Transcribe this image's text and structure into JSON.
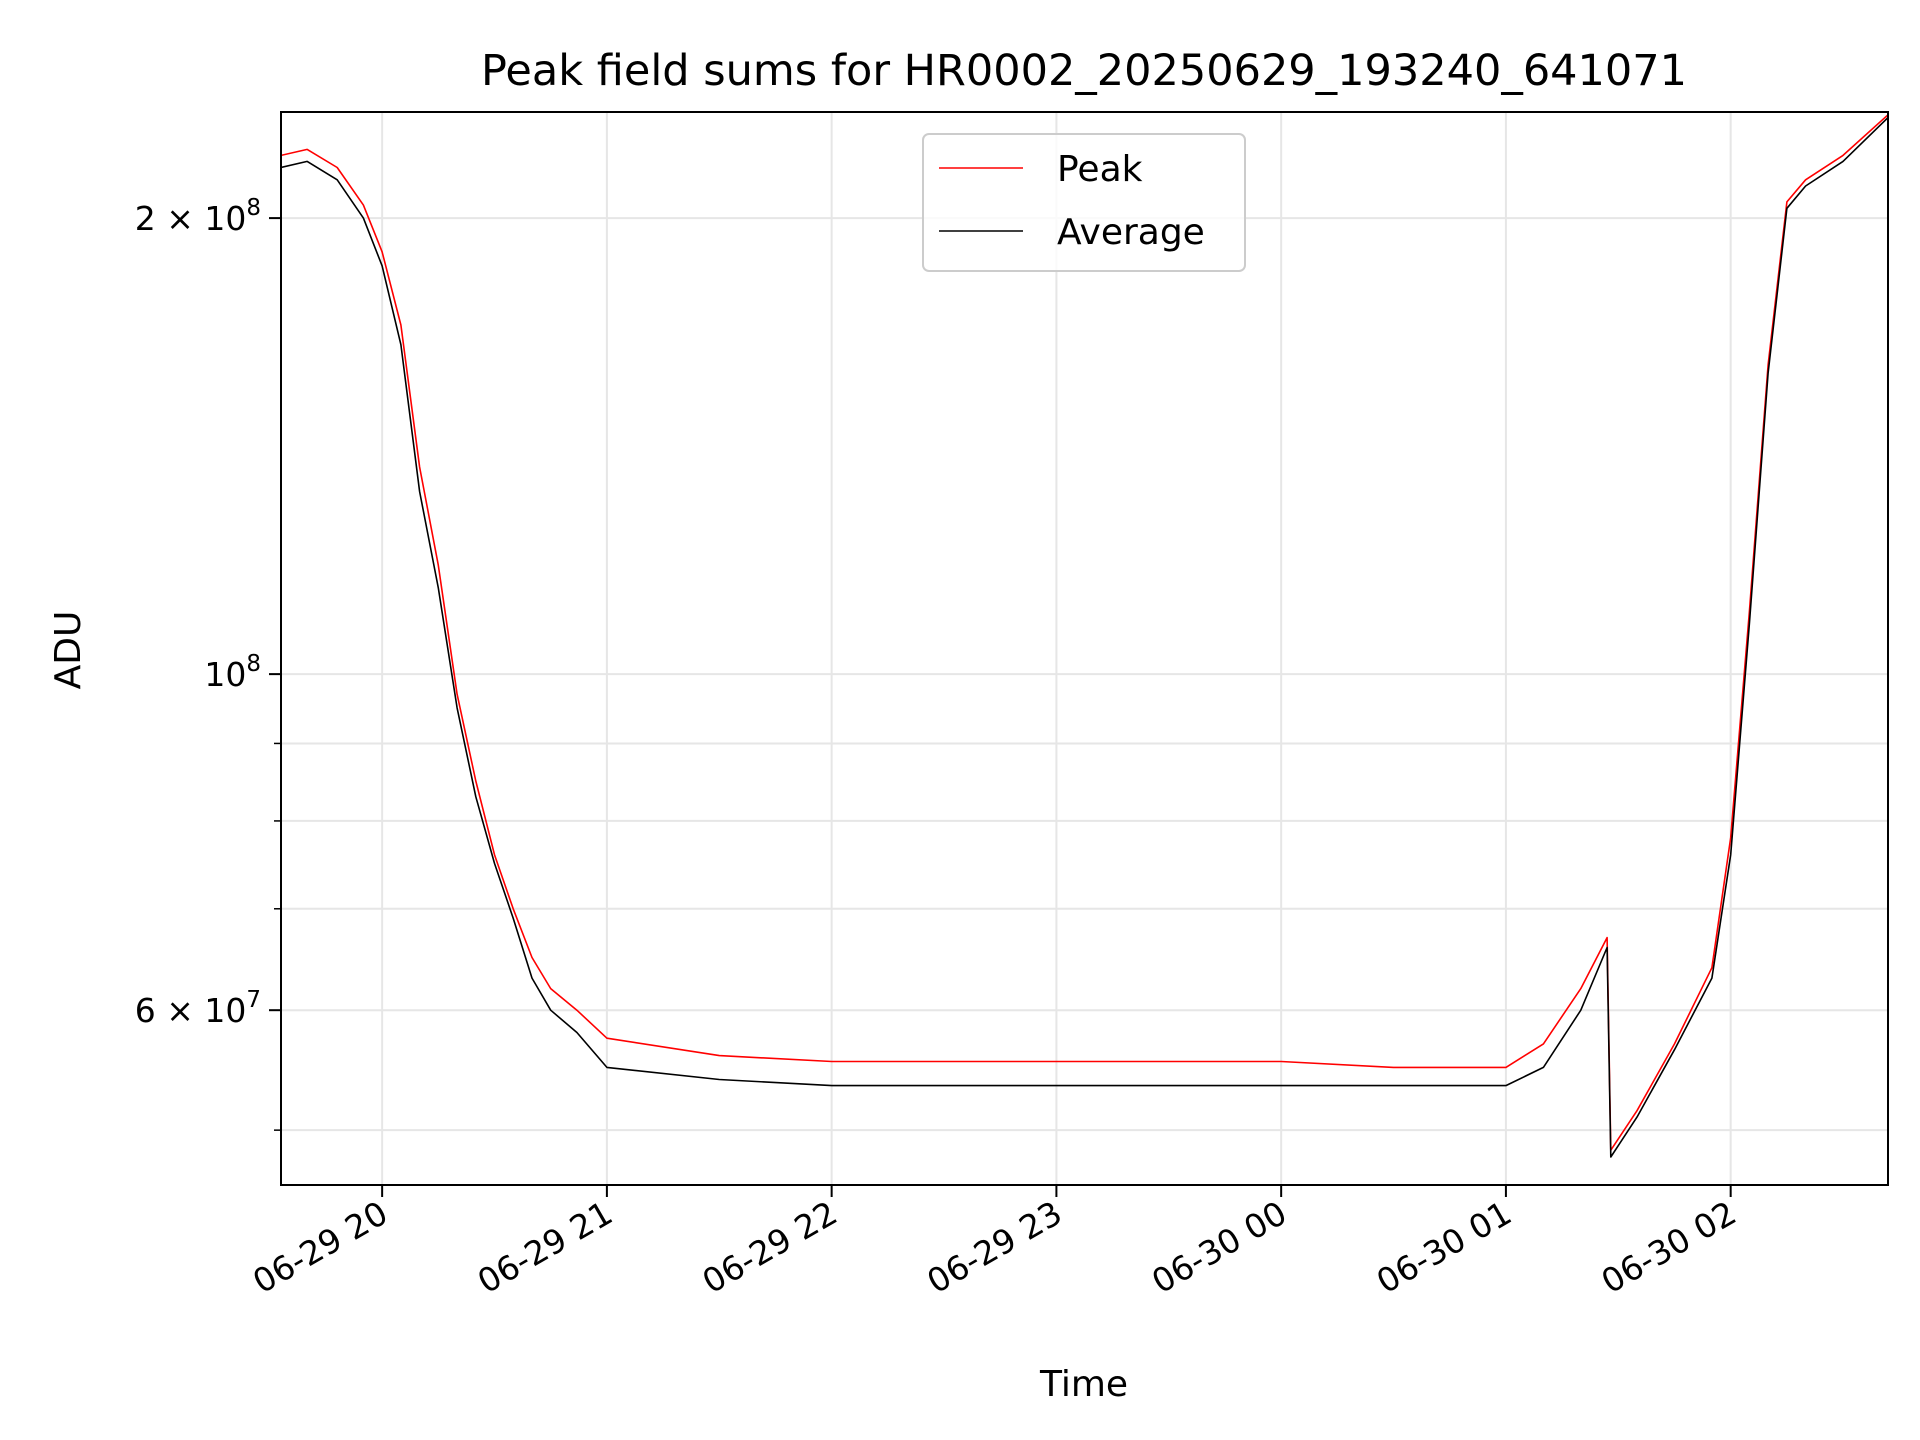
{
  "chart_data": {
    "type": "line",
    "title": "Peak field sums for HR0002_20250629_193240_641071",
    "xlabel": "Time",
    "ylabel": "ADU",
    "y_scale": "log",
    "ylim": [
      46000000,
      235000000
    ],
    "xlim": [
      "2025-06-29 19:33",
      "2025-06-30 02:42"
    ],
    "x_ticks": [
      {
        "t": "2025-06-29 20:00",
        "label": "06-29 20"
      },
      {
        "t": "2025-06-29 21:00",
        "label": "06-29 21"
      },
      {
        "t": "2025-06-29 22:00",
        "label": "06-29 22"
      },
      {
        "t": "2025-06-29 23:00",
        "label": "06-29 23"
      },
      {
        "t": "2025-06-30 00:00",
        "label": "06-30 00"
      },
      {
        "t": "2025-06-30 01:00",
        "label": "06-30 01"
      },
      {
        "t": "2025-06-30 02:00",
        "label": "06-30 02"
      }
    ],
    "y_major_ticks": [
      {
        "v": 60000000,
        "base": "6 × 10",
        "exp": "7"
      },
      {
        "v": 100000000,
        "base": "10",
        "exp": "8"
      },
      {
        "v": 200000000,
        "base": "2 × 10",
        "exp": "8"
      }
    ],
    "y_minor_ticks": [
      50000000,
      70000000,
      80000000,
      90000000
    ],
    "grid": true,
    "legend_position": "top-center",
    "series": [
      {
        "name": "Peak",
        "color": "#ff0000",
        "x": [
          "2025-06-29 19:33",
          "2025-06-29 19:40",
          "2025-06-29 19:48",
          "2025-06-29 19:55",
          "2025-06-29 20:00",
          "2025-06-29 20:05",
          "2025-06-29 20:10",
          "2025-06-29 20:15",
          "2025-06-29 20:20",
          "2025-06-29 20:25",
          "2025-06-29 20:30",
          "2025-06-29 20:35",
          "2025-06-29 20:40",
          "2025-06-29 20:45",
          "2025-06-29 20:52",
          "2025-06-29 21:00",
          "2025-06-29 21:30",
          "2025-06-29 22:00",
          "2025-06-29 22:30",
          "2025-06-29 23:00",
          "2025-06-29 23:30",
          "2025-06-30 00:00",
          "2025-06-30 00:30",
          "2025-06-30 01:00",
          "2025-06-30 01:10",
          "2025-06-30 01:20",
          "2025-06-30 01:27",
          "2025-06-30 01:28",
          "2025-06-30 01:35",
          "2025-06-30 01:45",
          "2025-06-30 01:55",
          "2025-06-30 02:00",
          "2025-06-30 02:05",
          "2025-06-30 02:10",
          "2025-06-30 02:15",
          "2025-06-30 02:20",
          "2025-06-30 02:30",
          "2025-06-30 02:42"
        ],
        "y": [
          220000000,
          222000000,
          216000000,
          204000000,
          190000000,
          170000000,
          137000000,
          118000000,
          97000000,
          85000000,
          76000000,
          70000000,
          65000000,
          62000000,
          60000000,
          57500000,
          56000000,
          55500000,
          55500000,
          55500000,
          55500000,
          55500000,
          55000000,
          55000000,
          57000000,
          62000000,
          67000000,
          48500000,
          51500000,
          57000000,
          64000000,
          78000000,
          110000000,
          160000000,
          205000000,
          212000000,
          220000000,
          234000000
        ]
      },
      {
        "name": "Average",
        "color": "#000000",
        "x": [
          "2025-06-29 19:33",
          "2025-06-29 19:40",
          "2025-06-29 19:48",
          "2025-06-29 19:55",
          "2025-06-29 20:00",
          "2025-06-29 20:05",
          "2025-06-29 20:10",
          "2025-06-29 20:15",
          "2025-06-29 20:20",
          "2025-06-29 20:25",
          "2025-06-29 20:30",
          "2025-06-29 20:35",
          "2025-06-29 20:40",
          "2025-06-29 20:45",
          "2025-06-29 20:52",
          "2025-06-29 21:00",
          "2025-06-29 21:30",
          "2025-06-29 22:00",
          "2025-06-29 22:30",
          "2025-06-29 23:00",
          "2025-06-29 23:30",
          "2025-06-30 00:00",
          "2025-06-30 00:30",
          "2025-06-30 01:00",
          "2025-06-30 01:10",
          "2025-06-30 01:20",
          "2025-06-30 01:27",
          "2025-06-30 01:28",
          "2025-06-30 01:35",
          "2025-06-30 01:45",
          "2025-06-30 01:55",
          "2025-06-30 02:00",
          "2025-06-30 02:05",
          "2025-06-30 02:10",
          "2025-06-30 02:15",
          "2025-06-30 02:20",
          "2025-06-30 02:30",
          "2025-06-30 02:42"
        ],
        "y": [
          216000000,
          218000000,
          212000000,
          200000000,
          186000000,
          165000000,
          132000000,
          114000000,
          95000000,
          83000000,
          75000000,
          69000000,
          63000000,
          60000000,
          58000000,
          55000000,
          54000000,
          53500000,
          53500000,
          53500000,
          53500000,
          53500000,
          53500000,
          53500000,
          55000000,
          60000000,
          66000000,
          48000000,
          51000000,
          56500000,
          63000000,
          76000000,
          108000000,
          158000000,
          203000000,
          210000000,
          218000000,
          233000000
        ]
      }
    ]
  }
}
